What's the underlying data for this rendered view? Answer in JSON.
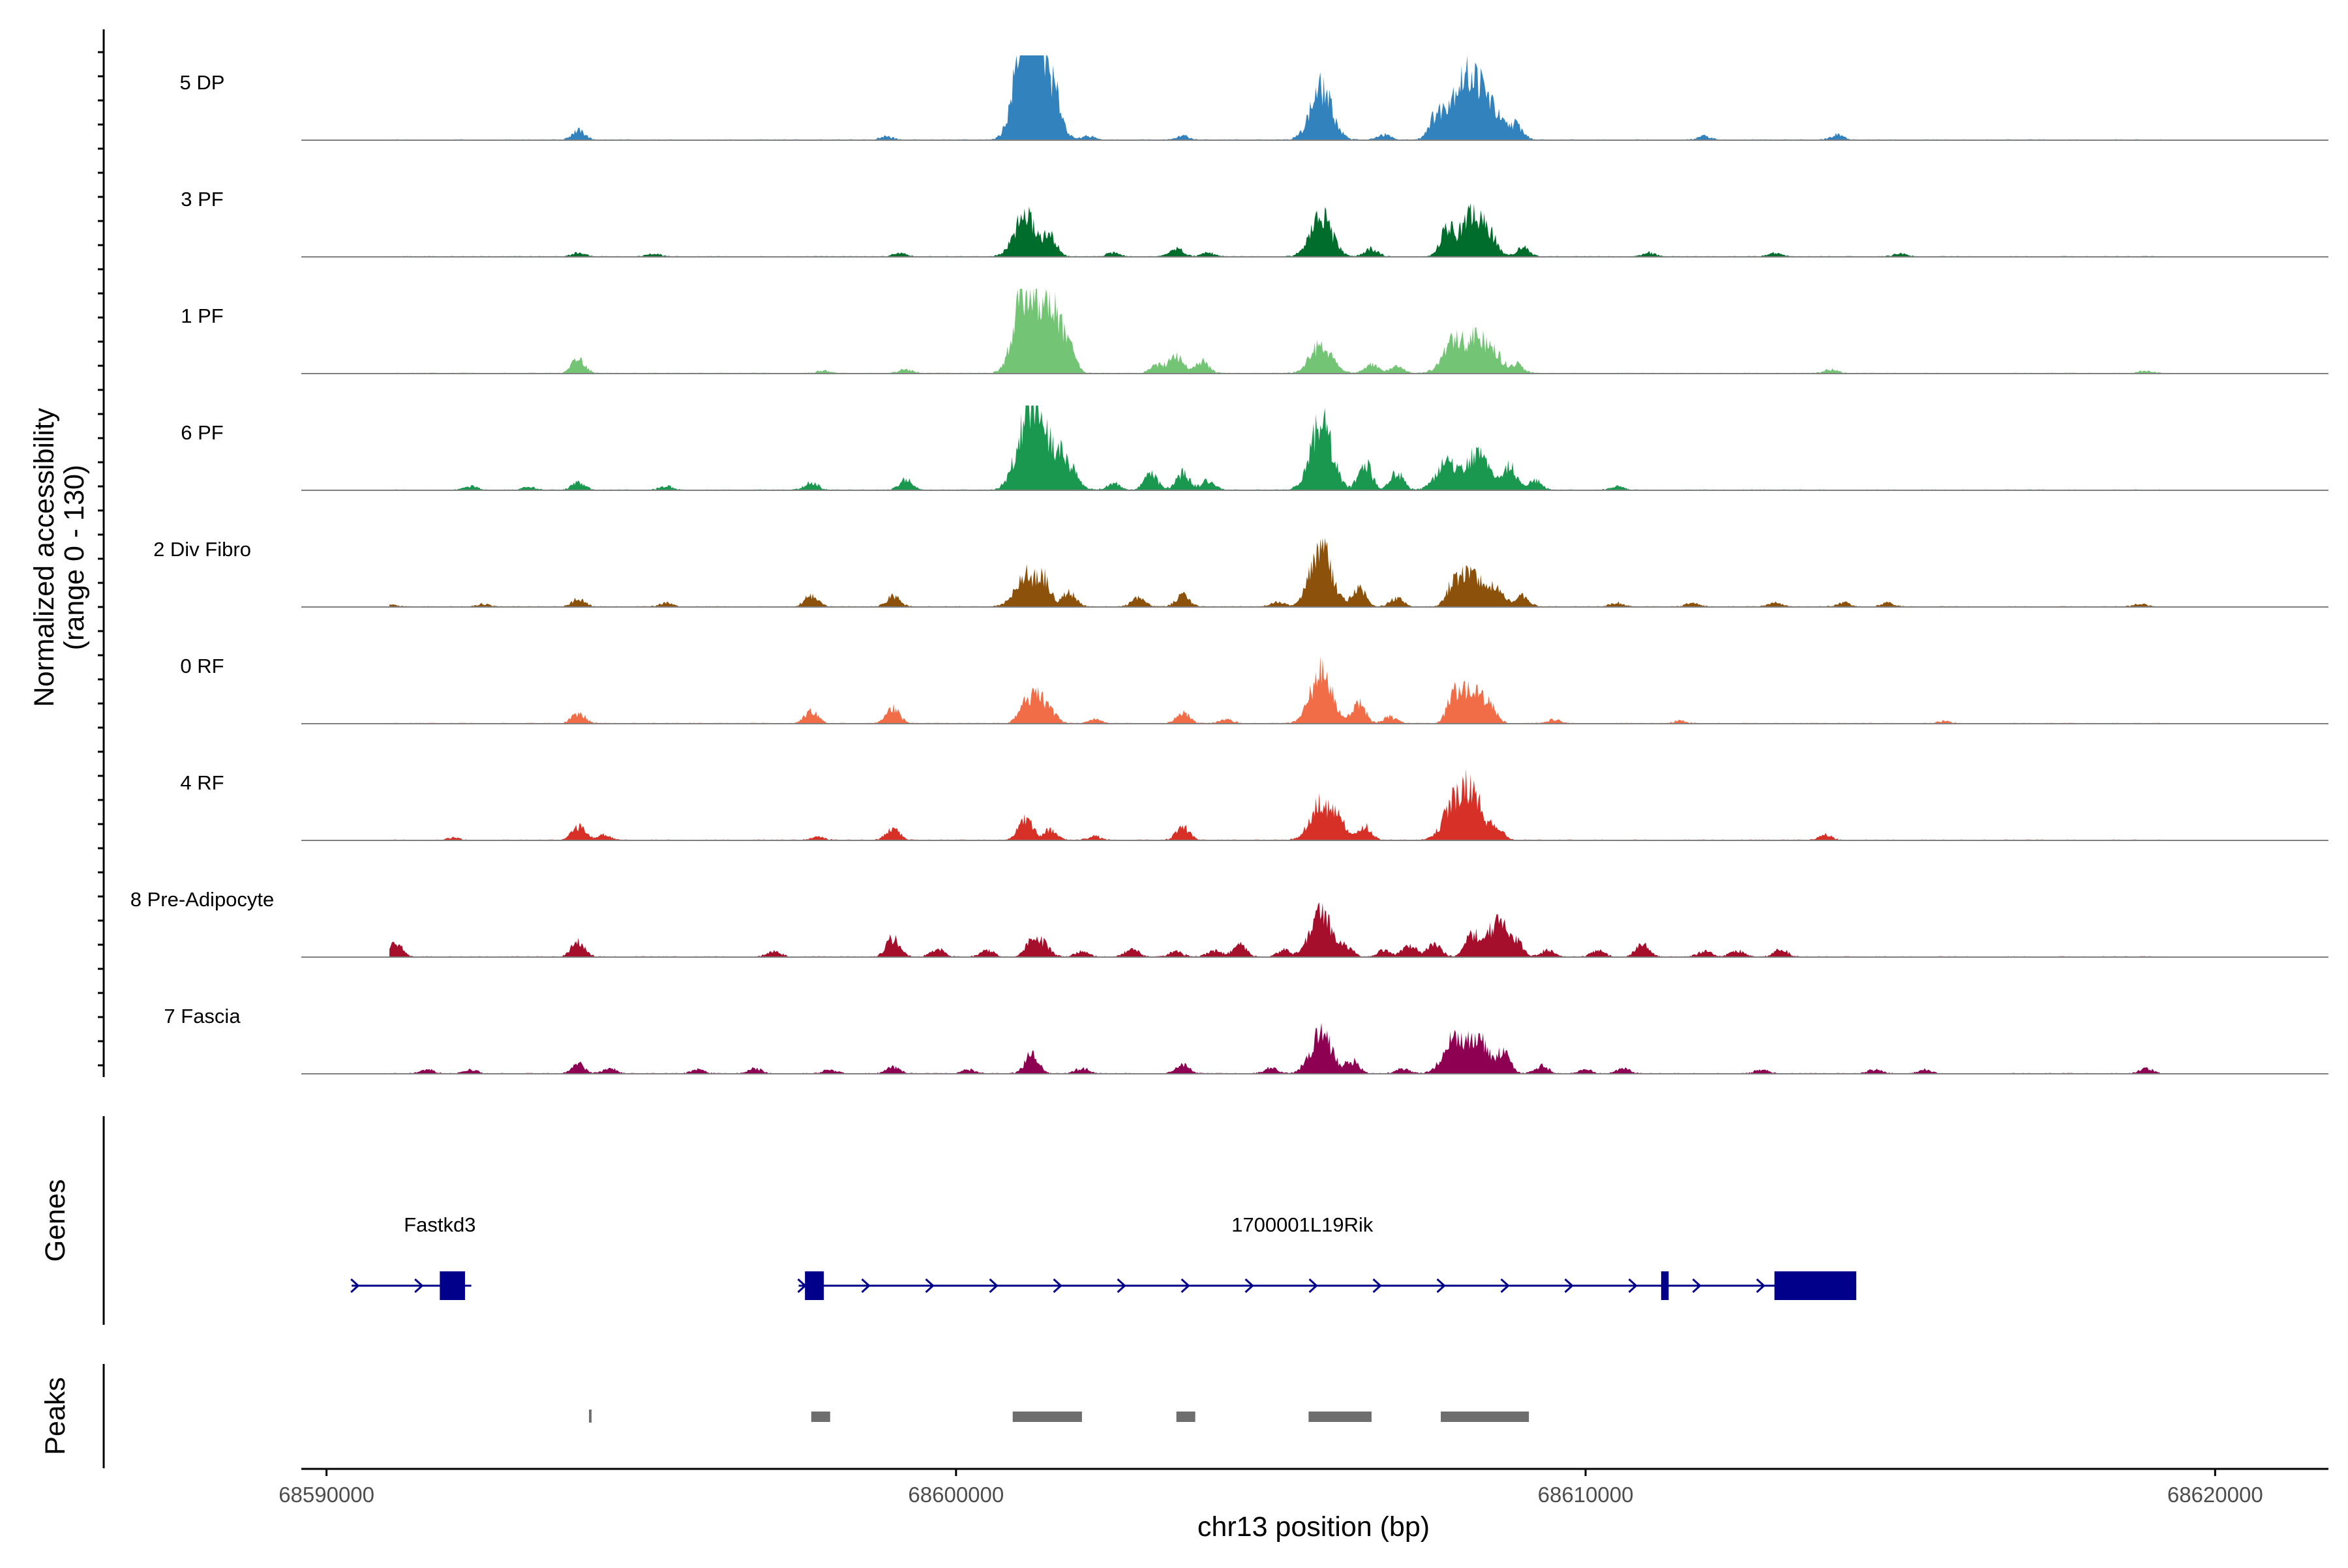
{
  "chart_data": {
    "type": "area",
    "title": "",
    "coverage_axis_label": "Normalized accessibility",
    "coverage_axis_sublabel": "(range 0 - 130)",
    "ylim": [
      0,
      130
    ],
    "xlabel": "chr13 position (bp)",
    "xlim": [
      68589600,
      68621800
    ],
    "x_ticks": [
      68590000,
      68600000,
      68610000,
      68620000
    ],
    "x_tick_labels": [
      "68590000",
      "68600000",
      "68610000",
      "68620000"
    ],
    "tracks": [
      {
        "name": "5 DP",
        "color": "#3182BD",
        "peaks": [
          [
            68594000,
            14
          ],
          [
            68598900,
            5
          ],
          [
            68601100,
            120
          ],
          [
            68601200,
            92
          ],
          [
            68601400,
            62
          ],
          [
            68601600,
            32
          ],
          [
            68602100,
            6
          ],
          [
            68603600,
            6
          ],
          [
            68605800,
            78
          ],
          [
            68606800,
            8
          ],
          [
            68607600,
            26
          ],
          [
            68607900,
            56
          ],
          [
            68608200,
            80
          ],
          [
            68608500,
            42
          ],
          [
            68608900,
            22
          ],
          [
            68611900,
            6
          ],
          [
            68614000,
            8
          ],
          [
            68619700,
            4
          ]
        ]
      },
      {
        "name": "3 PF",
        "color": "#006D2C",
        "peaks": [
          [
            68594000,
            6
          ],
          [
            68595200,
            4
          ],
          [
            68599100,
            5
          ],
          [
            68601100,
            62
          ],
          [
            68601500,
            28
          ],
          [
            68602500,
            6
          ],
          [
            68603500,
            12
          ],
          [
            68604000,
            6
          ],
          [
            68605800,
            60
          ],
          [
            68606600,
            12
          ],
          [
            68607800,
            40
          ],
          [
            68608200,
            64
          ],
          [
            68608500,
            25
          ],
          [
            68609000,
            14
          ],
          [
            68611000,
            6
          ],
          [
            68613000,
            5
          ],
          [
            68615000,
            5
          ]
        ]
      },
      {
        "name": "1 PF",
        "color": "#74C476",
        "peaks": [
          [
            68594000,
            22
          ],
          [
            68597900,
            4
          ],
          [
            68599200,
            6
          ],
          [
            68601100,
            126
          ],
          [
            68601500,
            98
          ],
          [
            68601800,
            28
          ],
          [
            68603200,
            14
          ],
          [
            68603500,
            26
          ],
          [
            68603900,
            18
          ],
          [
            68605800,
            44
          ],
          [
            68606600,
            14
          ],
          [
            68607000,
            10
          ],
          [
            68607900,
            46
          ],
          [
            68608300,
            52
          ],
          [
            68608600,
            18
          ],
          [
            68608900,
            14
          ],
          [
            68613900,
            6
          ],
          [
            68618900,
            4
          ]
        ]
      },
      {
        "name": "6 PF",
        "color": "#1A9850",
        "peaks": [
          [
            68592300,
            6
          ],
          [
            68593200,
            5
          ],
          [
            68594000,
            12
          ],
          [
            68595400,
            6
          ],
          [
            68597700,
            12
          ],
          [
            68599200,
            16
          ],
          [
            68601100,
            76
          ],
          [
            68601300,
            90
          ],
          [
            68601700,
            50
          ],
          [
            68602500,
            10
          ],
          [
            68603100,
            24
          ],
          [
            68603600,
            26
          ],
          [
            68604000,
            14
          ],
          [
            68605800,
            104
          ],
          [
            68606500,
            38
          ],
          [
            68607000,
            26
          ],
          [
            68607800,
            42
          ],
          [
            68608300,
            58
          ],
          [
            68608800,
            36
          ],
          [
            68609200,
            14
          ],
          [
            68610500,
            6
          ]
        ]
      },
      {
        "name": "2 Div Fibro",
        "color": "#8C510A",
        "peaks": [
          [
            68591000,
            4
          ],
          [
            68592500,
            4
          ],
          [
            68594000,
            12
          ],
          [
            68595400,
            6
          ],
          [
            68597700,
            16
          ],
          [
            68599000,
            16
          ],
          [
            68601100,
            48
          ],
          [
            68601400,
            36
          ],
          [
            68601800,
            22
          ],
          [
            68602900,
            14
          ],
          [
            68603600,
            18
          ],
          [
            68605100,
            8
          ],
          [
            68605800,
            90
          ],
          [
            68606400,
            30
          ],
          [
            68607000,
            14
          ],
          [
            68607900,
            32
          ],
          [
            68608200,
            52
          ],
          [
            68608600,
            30
          ],
          [
            68609000,
            16
          ],
          [
            68610500,
            6
          ],
          [
            68611700,
            6
          ],
          [
            68613000,
            6
          ],
          [
            68614100,
            6
          ],
          [
            68614800,
            6
          ],
          [
            68618800,
            4
          ]
        ]
      },
      {
        "name": "0 RF",
        "color": "#F16D47",
        "peaks": [
          [
            68594000,
            16
          ],
          [
            68597700,
            18
          ],
          [
            68599000,
            24
          ],
          [
            68601100,
            30
          ],
          [
            68601300,
            34
          ],
          [
            68601500,
            18
          ],
          [
            68602200,
            6
          ],
          [
            68603600,
            16
          ],
          [
            68604300,
            6
          ],
          [
            68605800,
            78
          ],
          [
            68606400,
            30
          ],
          [
            68606900,
            10
          ],
          [
            68607900,
            34
          ],
          [
            68608200,
            56
          ],
          [
            68608500,
            18
          ],
          [
            68609500,
            6
          ],
          [
            68611500,
            4
          ],
          [
            68615700,
            4
          ]
        ]
      },
      {
        "name": "4 RF",
        "color": "#D73027",
        "peaks": [
          [
            68592000,
            4
          ],
          [
            68594000,
            20
          ],
          [
            68594400,
            8
          ],
          [
            68597800,
            6
          ],
          [
            68599000,
            18
          ],
          [
            68601100,
            36
          ],
          [
            68601500,
            16
          ],
          [
            68602200,
            6
          ],
          [
            68603600,
            20
          ],
          [
            68605800,
            56
          ],
          [
            68606100,
            22
          ],
          [
            68606500,
            20
          ],
          [
            68607900,
            48
          ],
          [
            68608200,
            70
          ],
          [
            68608600,
            16
          ],
          [
            68613800,
            8
          ]
        ]
      },
      {
        "name": "8 Pre-Adipocyte",
        "color": "#A50F2B",
        "peaks": [
          [
            68591100,
            22
          ],
          [
            68594000,
            24
          ],
          [
            68597100,
            10
          ],
          [
            68599000,
            28
          ],
          [
            68599700,
            12
          ],
          [
            68600500,
            10
          ],
          [
            68601200,
            22
          ],
          [
            68601400,
            18
          ],
          [
            68602000,
            8
          ],
          [
            68602800,
            12
          ],
          [
            68603500,
            8
          ],
          [
            68604100,
            10
          ],
          [
            68604500,
            18
          ],
          [
            68605200,
            10
          ],
          [
            68605800,
            64
          ],
          [
            68606200,
            14
          ],
          [
            68606800,
            10
          ],
          [
            68607200,
            20
          ],
          [
            68607600,
            20
          ],
          [
            68608200,
            32
          ],
          [
            68608600,
            50
          ],
          [
            68608900,
            18
          ],
          [
            68609400,
            10
          ],
          [
            68610200,
            10
          ],
          [
            68610900,
            18
          ],
          [
            68611900,
            10
          ],
          [
            68612400,
            10
          ],
          [
            68613100,
            12
          ]
        ]
      },
      {
        "name": "7 Fascia",
        "color": "#8E0152",
        "peaks": [
          [
            68591600,
            6
          ],
          [
            68592300,
            6
          ],
          [
            68594000,
            14
          ],
          [
            68594500,
            8
          ],
          [
            68595900,
            6
          ],
          [
            68596800,
            8
          ],
          [
            68598000,
            6
          ],
          [
            68599000,
            10
          ],
          [
            68600200,
            6
          ],
          [
            68601200,
            30
          ],
          [
            68602000,
            8
          ],
          [
            68603600,
            14
          ],
          [
            68605000,
            8
          ],
          [
            68605800,
            60
          ],
          [
            68606300,
            18
          ],
          [
            68607100,
            8
          ],
          [
            68607900,
            48
          ],
          [
            68608300,
            50
          ],
          [
            68608700,
            30
          ],
          [
            68609300,
            12
          ],
          [
            68610000,
            6
          ],
          [
            68610600,
            8
          ],
          [
            68612800,
            6
          ],
          [
            68614600,
            6
          ],
          [
            68615400,
            6
          ],
          [
            68618900,
            8
          ]
        ]
      }
    ],
    "gene_track_label": "Genes",
    "genes": [
      {
        "name": "Fastkd3",
        "start": 68590400,
        "end": 68592300,
        "strand": "+",
        "exons": [
          [
            68591800,
            68592200
          ]
        ]
      },
      {
        "name": "1700001L19Rik",
        "start": 68597500,
        "end": 68614300,
        "strand": "+",
        "exons": [
          [
            68597600,
            68597900
          ],
          [
            68611200,
            68611320
          ],
          [
            68613000,
            68614300
          ]
        ]
      }
    ],
    "peak_track_label": "Peaks",
    "peak_regions": [
      [
        68594170,
        68594210
      ],
      [
        68597700,
        68598000
      ],
      [
        68600900,
        68602000
      ],
      [
        68603500,
        68603800
      ],
      [
        68605600,
        68606600
      ],
      [
        68607700,
        68609100
      ]
    ]
  }
}
